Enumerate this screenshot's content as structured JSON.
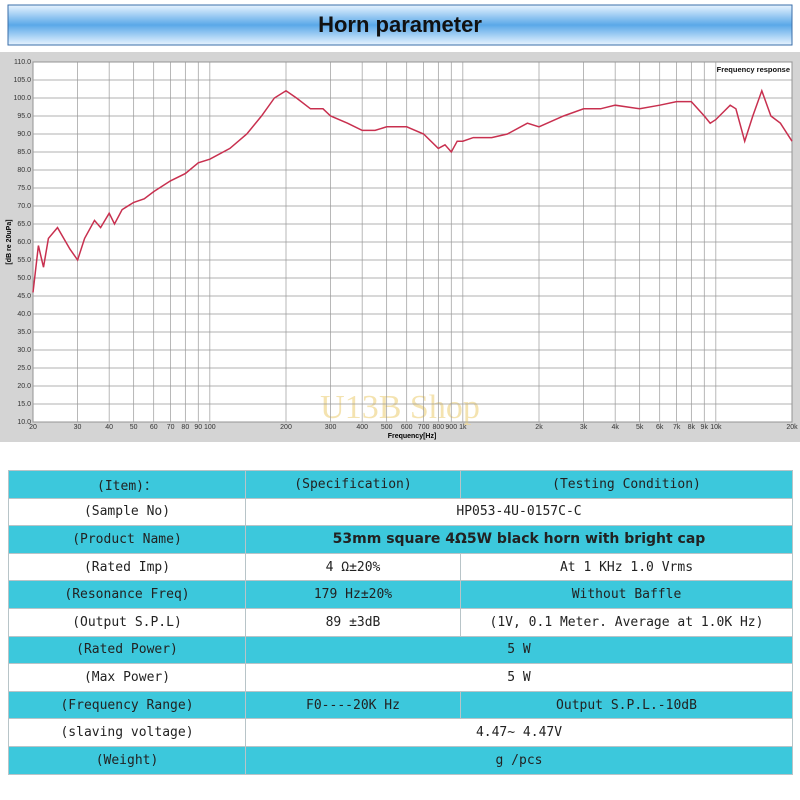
{
  "header": {
    "title": "Horn parameter"
  },
  "chart_data": {
    "type": "line",
    "ylabel": "[dB re 20uPa]",
    "xlabel": "Frequency[Hz]",
    "watermark": "U13B Shop",
    "log_x": true,
    "grid": true,
    "legend": "top-right",
    "xlim": [
      20,
      20000
    ],
    "ylim": [
      10,
      110
    ],
    "yticks": [
      {
        "value": 10,
        "label": "10.0"
      },
      {
        "value": 15,
        "label": "15.0"
      },
      {
        "value": 20,
        "label": "20.0"
      },
      {
        "value": 25,
        "label": "25.0"
      },
      {
        "value": 30,
        "label": "30.0"
      },
      {
        "value": 35,
        "label": "35.0"
      },
      {
        "value": 40,
        "label": "40.0"
      },
      {
        "value": 45,
        "label": "45.0"
      },
      {
        "value": 50,
        "label": "50.0"
      },
      {
        "value": 55,
        "label": "55.0"
      },
      {
        "value": 60,
        "label": "60.0"
      },
      {
        "value": 65,
        "label": "65.0"
      },
      {
        "value": 70,
        "label": "70.0"
      },
      {
        "value": 75,
        "label": "75.0"
      },
      {
        "value": 80,
        "label": "80.0"
      },
      {
        "value": 85,
        "label": "85.0"
      },
      {
        "value": 90,
        "label": "90.0"
      },
      {
        "value": 95,
        "label": "95.0"
      },
      {
        "value": 100,
        "label": "100.0"
      },
      {
        "value": 105,
        "label": "105.0"
      },
      {
        "value": 110,
        "label": "110.0"
      }
    ],
    "xticks": [
      20,
      30,
      40,
      50,
      60,
      70,
      80,
      90,
      100,
      200,
      300,
      400,
      500,
      600,
      700,
      800,
      900,
      {
        "value": 1000,
        "label": "1k"
      },
      {
        "value": 2000,
        "label": "2k"
      },
      {
        "value": 3000,
        "label": "3k"
      },
      {
        "value": 4000,
        "label": "4k"
      },
      {
        "value": 5000,
        "label": "5k"
      },
      {
        "value": 6000,
        "label": "6k"
      },
      {
        "value": 7000,
        "label": "7k"
      },
      {
        "value": 8000,
        "label": "8k"
      },
      {
        "value": 9000,
        "label": "9k"
      },
      {
        "value": 10000,
        "label": "10k"
      },
      {
        "value": 20000,
        "label": "20k"
      }
    ],
    "x": [
      20,
      21,
      22,
      23,
      25,
      28,
      30,
      32,
      35,
      37,
      40,
      42,
      45,
      50,
      55,
      60,
      70,
      80,
      90,
      100,
      120,
      140,
      160,
      180,
      200,
      220,
      250,
      280,
      300,
      350,
      400,
      450,
      500,
      600,
      700,
      800,
      850,
      900,
      950,
      1000,
      1100,
      1300,
      1500,
      1800,
      2000,
      2500,
      3000,
      3500,
      4000,
      5000,
      6000,
      7000,
      8000,
      9000,
      9500,
      10000,
      11400,
      12000,
      13000,
      14000,
      15200,
      16500,
      18000,
      20000
    ],
    "series": [
      {
        "name": "Frequency response",
        "color": "#c8304f",
        "values": [
          46,
          59,
          53,
          61,
          64,
          58,
          55,
          61,
          66,
          64,
          68,
          65,
          69,
          71,
          72,
          74,
          77,
          79,
          82,
          83,
          86,
          90,
          95,
          100,
          102,
          100,
          97,
          97,
          95,
          93,
          91,
          91,
          92,
          92,
          90,
          86,
          87,
          85,
          88,
          88,
          89,
          89,
          90,
          93,
          92,
          95,
          97,
          97,
          98,
          97,
          98,
          99,
          99,
          95,
          93,
          94,
          98,
          97,
          88,
          95,
          102,
          95,
          93,
          88
        ]
      }
    ]
  },
  "table": {
    "header": [
      "(Item)：",
      "(Specification)",
      "(Testing Condition)"
    ],
    "rows": [
      [
        "(Sample No)",
        "HP053-4U-0157C-C"
      ],
      [
        "(Product Name)",
        "53mm square 4Ω5W black horn with bright cap"
      ],
      [
        "(Rated Imp)",
        "4 Ω±20%",
        "At 1 KHz  1.0 Vrms"
      ],
      [
        "(Resonance Freq)",
        "179 Hz±20%",
        "Without Baffle"
      ],
      [
        "(Output S.P.L)",
        "89 ±3dB",
        "(1V, 0.1 Meter. Average at 1.0K Hz)"
      ],
      [
        "(Rated Power)",
        "5 W"
      ],
      [
        "(Max Power)",
        "5 W"
      ],
      [
        "(Frequency Range)",
        "F0----20K Hz",
        "Output S.P.L.-10dB"
      ],
      [
        "(slaving voltage)",
        "4.47~ 4.47V"
      ],
      [
        "(Weight)",
        "g /pcs"
      ]
    ]
  }
}
